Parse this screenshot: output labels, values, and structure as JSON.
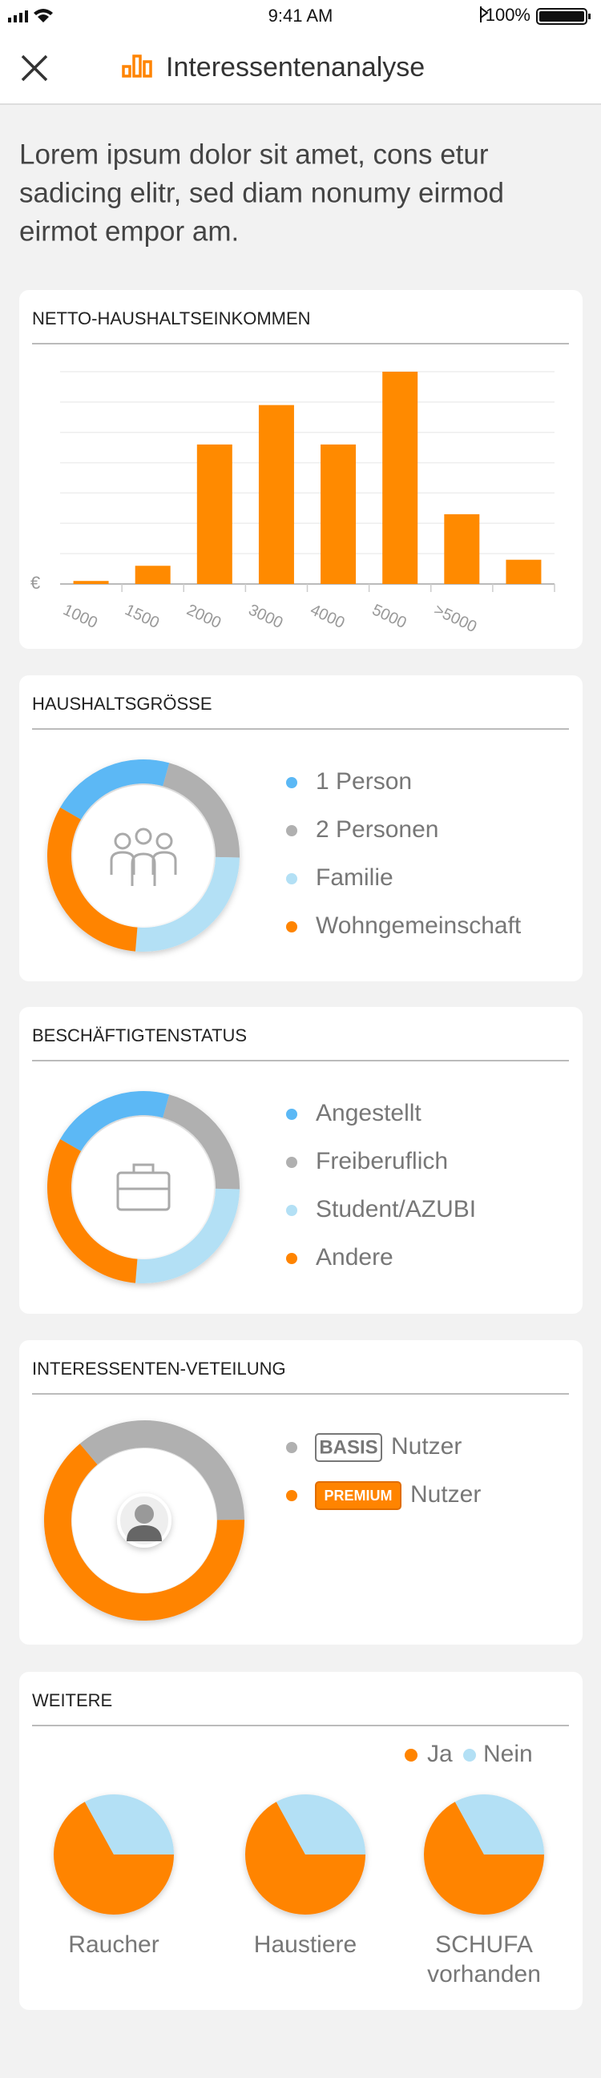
{
  "status": {
    "time": "9:41 AM",
    "battery": "100%"
  },
  "header": {
    "title": "Interessentenanalyse"
  },
  "intro": [
    "Lorem ipsum dolor sit amet, cons etur",
    "sadicing elitr, sed diam nonumy eirmod",
    "eirmot empor am."
  ],
  "income": {
    "type": "bar",
    "title": "NETTO-HAUSHALTSEINKOMMEN",
    "y_label": "€",
    "categories": [
      "1000",
      "1500",
      "2000",
      "3000",
      "4000",
      "5000",
      ">5000",
      null
    ],
    "values": [
      0.1,
      0.6,
      4.6,
      5.9,
      4.6,
      7,
      2.3,
      0.8
    ],
    "color": "#ff8a00",
    "ylim": [
      0,
      7
    ],
    "yticks": [
      0,
      1,
      2,
      3,
      4,
      5,
      6,
      7
    ],
    "grid": true
  },
  "household": {
    "type": "donut",
    "title": "HAUSHALTSGRÖSSE",
    "categories": [
      "1 Person",
      "2 Personen",
      "Familie",
      "Wohngemeinschaft"
    ],
    "values": [
      21,
      21,
      26,
      32
    ],
    "colors": [
      "#5bb8f5",
      "#b0b0b0",
      "#b3e0f5",
      "#ff8400"
    ]
  },
  "employment": {
    "type": "donut",
    "title": "BESCHÄFTIGTENSTATUS",
    "categories": [
      "Angestellt",
      "Freiberuflich",
      "Student/AZUBI",
      "Andere"
    ],
    "values": [
      21,
      21,
      26,
      32
    ],
    "colors": [
      "#5bb8f5",
      "#b0b0b0",
      "#b3e0f5",
      "#ff8400"
    ]
  },
  "distribution": {
    "type": "donut",
    "title": "INTERESSENTEN-VETEILUNG",
    "categories": [
      {
        "badge": "BASIS",
        "label": "Nutzer"
      },
      {
        "badge": "PREMIUM",
        "label": "Nutzer"
      }
    ],
    "values": [
      36,
      64
    ],
    "colors": [
      "#b0b0b0",
      "#ff8400"
    ]
  },
  "more": {
    "type": "pie",
    "title": "WEITERE",
    "legend": [
      "Ja",
      "Nein"
    ],
    "colors": [
      "#ff8400",
      "#b3e0f5"
    ],
    "charts": [
      {
        "label": [
          "Raucher"
        ],
        "values": [
          67,
          33
        ]
      },
      {
        "label": [
          "Haustiere"
        ],
        "values": [
          67,
          33
        ]
      },
      {
        "label": [
          "SCHUFA",
          "vorhanden"
        ],
        "values": [
          67,
          33
        ]
      }
    ]
  }
}
